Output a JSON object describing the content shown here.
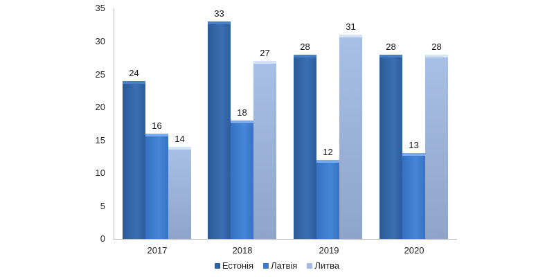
{
  "chart_data": {
    "type": "bar",
    "title": "",
    "xlabel": "",
    "ylabel": "",
    "categories": [
      "2017",
      "2018",
      "2019",
      "2020"
    ],
    "series": [
      {
        "name": "Естонія",
        "color": "#2f609f",
        "values": [
          24,
          33,
          28,
          28
        ]
      },
      {
        "name": "Латвія",
        "color": "#3d7bcc",
        "values": [
          16,
          18,
          12,
          13
        ]
      },
      {
        "name": "Литва",
        "color": "#a4bae0",
        "values": [
          14,
          27,
          31,
          28
        ]
      }
    ],
    "ylim": [
      0,
      35
    ],
    "yticks": [
      "0",
      "5",
      "10",
      "15",
      "20",
      "25",
      "30",
      "35"
    ],
    "grid": false,
    "legend_position": "bottom"
  }
}
